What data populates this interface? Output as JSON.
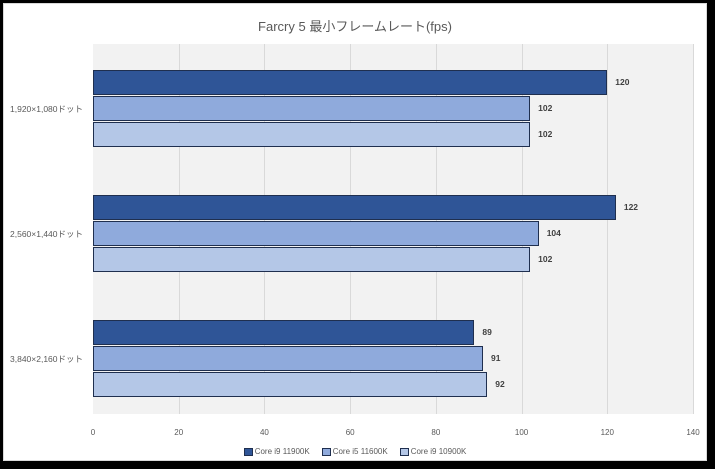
{
  "chart_data": {
    "type": "bar",
    "orientation": "horizontal",
    "title": "Farcry 5 最小フレームレート(fps)",
    "xlabel": "",
    "ylabel": "",
    "xlim": [
      0,
      140
    ],
    "x_ticks": [
      "0",
      "20",
      "40",
      "60",
      "80",
      "100",
      "120",
      "140"
    ],
    "grid": true,
    "legend_position": "bottom",
    "categories": [
      "1,920×1,080ドット",
      "2,560×1,440ドット",
      "3,840×2,160ドット"
    ],
    "series": [
      {
        "name": "Core i9 11900K",
        "color": "#2f5597",
        "values": [
          120,
          122,
          89
        ]
      },
      {
        "name": "Core i5 11600K",
        "color": "#8faadc",
        "values": [
          102,
          104,
          91
        ]
      },
      {
        "name": "Core i9 10900K",
        "color": "#b4c7e7",
        "values": [
          102,
          102,
          92
        ]
      }
    ]
  }
}
